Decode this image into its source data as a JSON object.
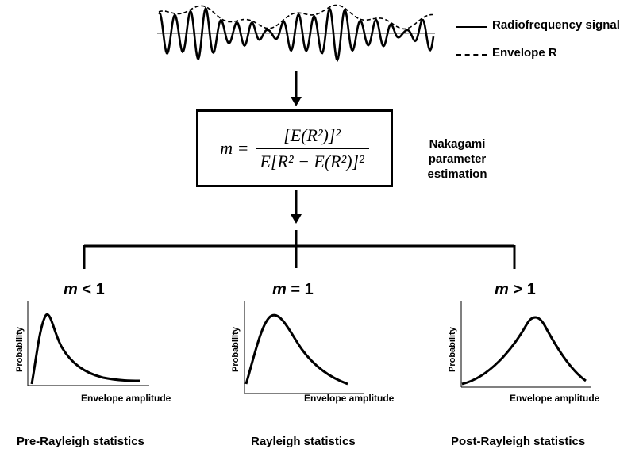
{
  "signal": {
    "legend": {
      "solid_label": "Radiofrequency signal",
      "dashed_label": "Envelope R"
    }
  },
  "formula": {
    "lhs": "m =",
    "numerator": "[E(R²)]²",
    "denominator": "E[R² − E(R²)]²"
  },
  "estimation_label": {
    "line1": "Nakagami parameter",
    "line2": "estimation"
  },
  "branches": [
    {
      "m_var": "m",
      "m_rel": " < 1",
      "ylabel": "Probability",
      "xlabel": "Envelope amplitude",
      "statistics": "Pre-Rayleigh statistics"
    },
    {
      "m_var": "m",
      "m_rel": " = 1",
      "ylabel": "Probability",
      "xlabel": "Envelope amplitude",
      "statistics": "Rayleigh statistics"
    },
    {
      "m_var": "m",
      "m_rel": " > 1",
      "ylabel": "Probability",
      "xlabel": "Envelope amplitude",
      "statistics": "Post-Rayleigh statistics"
    }
  ]
}
